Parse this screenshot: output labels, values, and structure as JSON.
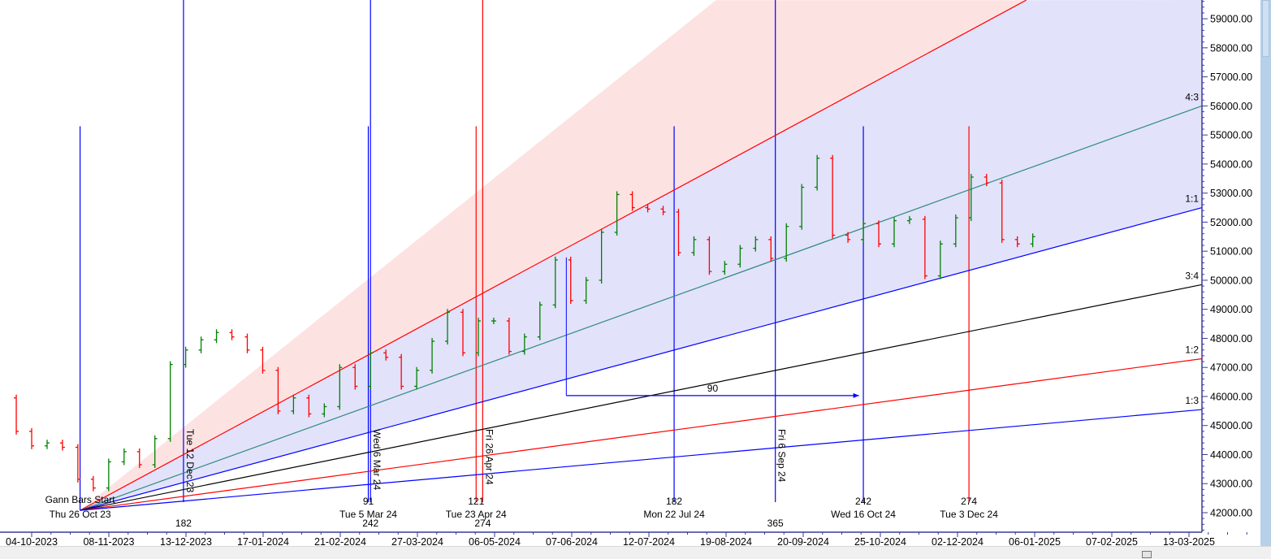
{
  "chart_data": {
    "type": "bar",
    "title": "",
    "xlabel": "",
    "ylabel": "",
    "ylim": [
      41350,
      59640
    ],
    "xlim": [
      "2023-09-19",
      "2025-03-19"
    ],
    "grid": false,
    "y_ticks": [
      "42000.00",
      "43000.00",
      "44000.00",
      "45000.00",
      "46000.00",
      "47000.00",
      "48000.00",
      "49000.00",
      "50000.00",
      "51000.00",
      "52000.00",
      "53000.00",
      "54000.00",
      "55000.00",
      "56000.00",
      "57000.00",
      "58000.00",
      "59000.00"
    ],
    "x_ticks": [
      "04-10-2023",
      "08-11-2023",
      "13-12-2023",
      "17-01-2024",
      "21-02-2024",
      "27-03-2024",
      "06-05-2024",
      "07-06-2024",
      "12-07-2024",
      "19-08-2024",
      "20-09-2024",
      "25-10-2024",
      "02-12-2024",
      "06-01-2025",
      "07-02-2025",
      "13-03-2025"
    ],
    "colors": {
      "up": "#008000",
      "down": "#ff0000",
      "fill_upper": "#fde2e2",
      "fill_lower": "#e2e2fb",
      "axis": "#3a3a9a"
    },
    "price_series": {
      "dates": [
        "2023-09-20",
        "2023-09-27",
        "2023-10-04",
        "2023-10-11",
        "2023-10-18",
        "2023-10-25",
        "2023-11-01",
        "2023-11-08",
        "2023-11-15",
        "2023-11-22",
        "2023-11-29",
        "2023-12-06",
        "2023-12-13",
        "2023-12-20",
        "2023-12-27",
        "2024-01-03",
        "2024-01-10",
        "2024-01-17",
        "2024-01-24",
        "2024-01-31",
        "2024-02-07",
        "2024-02-14",
        "2024-02-21",
        "2024-02-28",
        "2024-03-06",
        "2024-03-13",
        "2024-03-20",
        "2024-03-27",
        "2024-04-03",
        "2024-04-10",
        "2024-04-17",
        "2024-04-24",
        "2024-05-01",
        "2024-05-08",
        "2024-05-15",
        "2024-05-22",
        "2024-05-29",
        "2024-06-05",
        "2024-06-12",
        "2024-06-19",
        "2024-06-26",
        "2024-07-03",
        "2024-07-10",
        "2024-07-17",
        "2024-07-24",
        "2024-07-31",
        "2024-08-07",
        "2024-08-14",
        "2024-08-21",
        "2024-08-28",
        "2024-09-04",
        "2024-09-11",
        "2024-09-18",
        "2024-09-25",
        "2024-10-02",
        "2024-10-09",
        "2024-10-16",
        "2024-10-23",
        "2024-10-30",
        "2024-11-06",
        "2024-11-13",
        "2024-11-20",
        "2024-11-27",
        "2024-12-04",
        "2024-12-11",
        "2024-12-18",
        "2024-12-25",
        "2025-01-01"
      ],
      "close": [
        45950,
        44800,
        44300,
        44400,
        44250,
        43150,
        42850,
        43750,
        44100,
        43650,
        44550,
        47100,
        47600,
        47950,
        48200,
        48050,
        47600,
        46900,
        45500,
        45950,
        45400,
        45650,
        47000,
        46350,
        47500,
        47350,
        46350,
        46900,
        47900,
        48900,
        47500,
        48600,
        48600,
        47550,
        48050,
        49150,
        50700,
        49300,
        50000,
        51650,
        52950,
        52500,
        52450,
        52350,
        50950,
        51400,
        50300,
        50550,
        51100,
        51400,
        50750,
        51850,
        53200,
        54200,
        51550,
        51400,
        51950,
        51250,
        52050,
        52100,
        50150,
        51250,
        52150,
        53550,
        53350,
        51400,
        51250,
        51500
      ]
    },
    "gann_start": {
      "date": "2023-10-26",
      "price": 42080
    },
    "gann_fan": [
      {
        "label": "",
        "color": "#ff0000",
        "end_date": "2024-12-29",
        "end_price": 59640
      },
      {
        "label": "4:3",
        "color": "#2e8b7a",
        "end_date": "2025-03-19",
        "end_price": 56000
      },
      {
        "label": "1:1",
        "color": "#0000ff",
        "end_date": "2025-03-19",
        "end_price": 52500
      },
      {
        "label": "3:4",
        "color": "#000000",
        "end_date": "2025-03-19",
        "end_price": 49850
      },
      {
        "label": "1:2",
        "color": "#ff0000",
        "end_date": "2025-03-19",
        "end_price": 47300
      },
      {
        "label": "1:3",
        "color": "#0000ff",
        "end_date": "2025-03-19",
        "end_price": 45550
      }
    ],
    "fill_upper_edge": {
      "end_date": "2024-08-10",
      "end_price": 59640
    },
    "time_lines": [
      {
        "date": "2023-10-26",
        "color": "#0000ff",
        "tall": false,
        "count": "",
        "date_label": "Thu 26 Oct 23",
        "rotated_label": "",
        "bottom_count": "",
        "title": "Gann Bars Start"
      },
      {
        "date": "2023-12-12",
        "color": "#0000ff",
        "tall": true,
        "count": "",
        "date_label": "",
        "rotated_label": "Tue 12 Dec 23",
        "bottom_count": "182",
        "title": ""
      },
      {
        "date": "2024-03-05",
        "color": "#0000ff",
        "tall": false,
        "count": "91",
        "date_label": "Tue 5 Mar 24",
        "rotated_label": "",
        "bottom_count": "",
        "title": ""
      },
      {
        "date": "2024-03-06",
        "color": "#0000ff",
        "tall": true,
        "count": "",
        "date_label": "",
        "rotated_label": "Wed 6 Mar 24",
        "bottom_count": "242",
        "title": ""
      },
      {
        "date": "2024-04-23",
        "color": "#ff0000",
        "tall": false,
        "count": "121",
        "date_label": "Tue 23 Apr 24",
        "rotated_label": "",
        "bottom_count": "",
        "title": ""
      },
      {
        "date": "2024-04-26",
        "color": "#ff0000",
        "tall": true,
        "count": "",
        "date_label": "",
        "rotated_label": "Fri 26 Apr 24",
        "bottom_count": "274",
        "title": ""
      },
      {
        "date": "2024-07-22",
        "color": "#0000ff",
        "tall": false,
        "count": "182",
        "date_label": "Mon 22 Jul 24",
        "rotated_label": "",
        "bottom_count": "",
        "title": ""
      },
      {
        "date": "2024-09-06",
        "color": "#0000ff",
        "tall": true,
        "count": "",
        "date_label": "",
        "rotated_label": "Fri 6 Sep 24",
        "bottom_count": "365",
        "title": ""
      },
      {
        "date": "2024-10-16",
        "color": "#0000ff",
        "tall": false,
        "count": "242",
        "date_label": "Wed 16 Oct 24",
        "rotated_label": "",
        "bottom_count": "",
        "title": ""
      },
      {
        "date": "2024-12-03",
        "color": "#ff0000",
        "tall": false,
        "count": "274",
        "date_label": "Tue 3 Dec 24",
        "rotated_label": "",
        "bottom_count": "",
        "title": ""
      }
    ],
    "time_lines_top_price": 55300,
    "measure": {
      "label": "90",
      "start_date": "2024-06-03",
      "end_date": "2024-10-14",
      "price": 46030,
      "color": "#0000ff"
    }
  }
}
